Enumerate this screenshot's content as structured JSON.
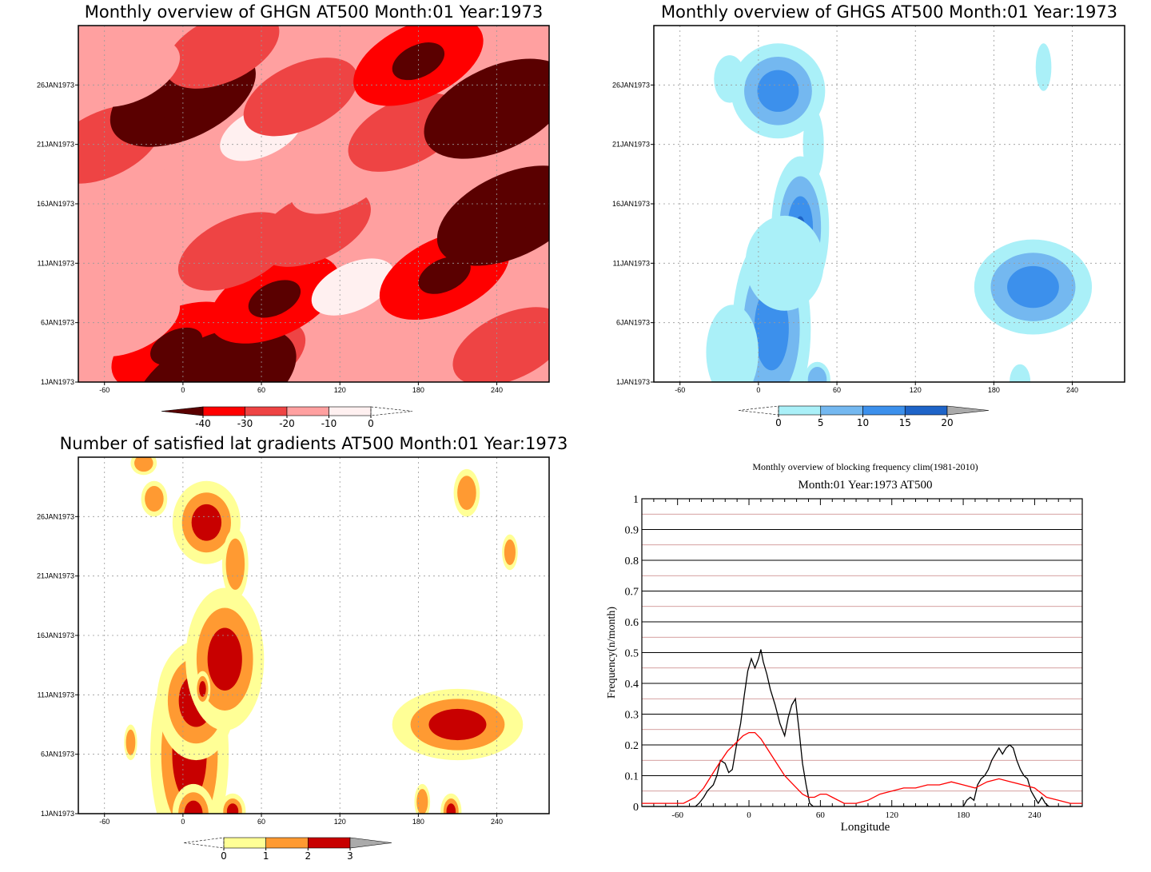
{
  "chart_data": [
    {
      "id": "ghgn",
      "type": "heatmap",
      "title": "Monthly overview of GHGN AT500 Month:01 Year:1973",
      "xlim": [
        -80,
        280
      ],
      "x_ticks": [
        -60,
        0,
        60,
        120,
        180,
        240
      ],
      "y_ticks": [
        "1JAN1973",
        "6JAN1973",
        "11JAN1973",
        "16JAN1973",
        "21JAN1973",
        "26JAN1973"
      ],
      "colorbar": {
        "labels": [
          "-40",
          "-30",
          "-20",
          "-10",
          "0"
        ],
        "colors": [
          "#5a0000",
          "#ff0000",
          "#ee4444",
          "#ffa0a0",
          "#fff0f0"
        ]
      },
      "blobs": [
        {
          "lon": 5,
          "day": 2,
          "level": 3
        },
        {
          "lon": -5,
          "day": 4,
          "level": 2
        },
        {
          "lon": 50,
          "day": 3,
          "level": 1
        },
        {
          "lon": 25,
          "day": 1,
          "level": 4
        },
        {
          "lon": -40,
          "day": 6,
          "level": 0
        },
        {
          "lon": 70,
          "day": 8,
          "level": 2
        },
        {
          "lon": 130,
          "day": 9,
          "level": -1
        },
        {
          "lon": 150,
          "day": 5,
          "level": 0
        },
        {
          "lon": 250,
          "day": 4,
          "level": 1
        },
        {
          "lon": 200,
          "day": 10,
          "level": 2
        },
        {
          "lon": 40,
          "day": 12,
          "level": 1
        },
        {
          "lon": 100,
          "day": 14,
          "level": 1
        },
        {
          "lon": 250,
          "day": 15,
          "level": 3
        },
        {
          "lon": 0,
          "day": 17,
          "level": 0
        },
        {
          "lon": 120,
          "day": 18,
          "level": 0
        },
        {
          "lon": -60,
          "day": 21,
          "level": 1
        },
        {
          "lon": 60,
          "day": 22,
          "level": -1
        },
        {
          "lon": 170,
          "day": 22,
          "level": 1
        },
        {
          "lon": 240,
          "day": 24,
          "level": 3
        },
        {
          "lon": 0,
          "day": 25,
          "level": 3
        },
        {
          "lon": 90,
          "day": 25,
          "level": 1
        },
        {
          "lon": 180,
          "day": 28,
          "level": 2
        },
        {
          "lon": 30,
          "day": 29,
          "level": 1
        },
        {
          "lon": -40,
          "day": 27,
          "level": 0
        }
      ]
    },
    {
      "id": "ghgs",
      "type": "heatmap",
      "title": "Monthly overview of GHGS AT500 Month:01 Year:1973",
      "xlim": [
        -80,
        280
      ],
      "x_ticks": [
        -60,
        0,
        60,
        120,
        180,
        240
      ],
      "y_ticks": [
        "1JAN1973",
        "6JAN1973",
        "11JAN1973",
        "16JAN1973",
        "21JAN1973",
        "26JAN1973"
      ],
      "colorbar": {
        "labels": [
          "0",
          "5",
          "10",
          "15",
          "20"
        ],
        "colors": [
          "#aaf0f8",
          "#74b8f0",
          "#3c90ec",
          "#1e64c8"
        ]
      },
      "blobs": [
        {
          "lon": 10,
          "day": 5.5,
          "w": 30,
          "h": 8,
          "level": 2
        },
        {
          "lon": -20,
          "day": 3.5,
          "w": 20,
          "h": 4,
          "level": 0
        },
        {
          "lon": 32,
          "day": 14,
          "w": 22,
          "h": 6,
          "level": 3
        },
        {
          "lon": 20,
          "day": 11,
          "w": 30,
          "h": 4,
          "level": 0
        },
        {
          "lon": 15,
          "day": 25.5,
          "w": 36,
          "h": 4,
          "level": 2
        },
        {
          "lon": 42,
          "day": 21,
          "w": 8,
          "h": 3,
          "level": 0
        },
        {
          "lon": -22,
          "day": 26.5,
          "w": 12,
          "h": 2,
          "level": 0
        },
        {
          "lon": 210,
          "day": 9,
          "w": 45,
          "h": 4,
          "level": 2
        },
        {
          "lon": 218,
          "day": 27.5,
          "w": 6,
          "h": 2,
          "level": 0
        },
        {
          "lon": 200,
          "day": 1,
          "w": 8,
          "h": 1.5,
          "level": 0
        },
        {
          "lon": 45,
          "day": 1.2,
          "w": 10,
          "h": 1.5,
          "level": 1
        }
      ]
    },
    {
      "id": "lat_gradients",
      "type": "heatmap",
      "title": "Number of satisfied lat gradients AT500 Month:01 Year:1973",
      "xlim": [
        -80,
        280
      ],
      "x_ticks": [
        -60,
        0,
        60,
        120,
        180,
        240
      ],
      "y_ticks": [
        "1JAN1973",
        "6JAN1973",
        "11JAN1973",
        "16JAN1973",
        "21JAN1973",
        "26JAN1973"
      ],
      "colorbar": {
        "labels": [
          "0",
          "1",
          "2",
          "3"
        ],
        "colors": [
          "#ffff96",
          "#ff9a32",
          "#c80000"
        ]
      },
      "blobs": [
        {
          "lon": 5,
          "day": 6,
          "w": 30,
          "h": 9,
          "level": 3
        },
        {
          "lon": 10,
          "day": 10.5,
          "w": 30,
          "h": 5,
          "level": 2
        },
        {
          "lon": 32,
          "day": 14,
          "w": 30,
          "h": 6,
          "level": 2
        },
        {
          "lon": 15,
          "day": 11.5,
          "w": 6,
          "h": 1.5,
          "level": 3
        },
        {
          "lon": 18,
          "day": 25.5,
          "w": 26,
          "h": 3.5,
          "level": 3
        },
        {
          "lon": 8,
          "day": 1,
          "w": 16,
          "h": 2.5,
          "level": 3
        },
        {
          "lon": 38,
          "day": 1.2,
          "w": 10,
          "h": 1.5,
          "level": 2
        },
        {
          "lon": 210,
          "day": 8.5,
          "w": 50,
          "h": 3,
          "level": 2
        },
        {
          "lon": 205,
          "day": 1.2,
          "w": 8,
          "h": 1.5,
          "level": 2
        },
        {
          "lon": -40,
          "day": 7,
          "w": 5,
          "h": 1.5,
          "level": 1
        },
        {
          "lon": -22,
          "day": 27.5,
          "w": 10,
          "h": 1.5,
          "level": 1
        },
        {
          "lon": 40,
          "day": 22,
          "w": 10,
          "h": 3,
          "level": 1
        },
        {
          "lon": 217,
          "day": 28,
          "w": 10,
          "h": 2,
          "level": 1
        },
        {
          "lon": 250,
          "day": 23,
          "w": 6,
          "h": 1.5,
          "level": 1
        },
        {
          "lon": 183,
          "day": 2,
          "w": 6,
          "h": 1.5,
          "level": 1
        },
        {
          "lon": -30,
          "day": 30.5,
          "w": 10,
          "h": 1,
          "level": 1
        }
      ]
    },
    {
      "id": "blocking_frequency",
      "type": "line",
      "title": "Monthly overview of blocking frequency clim(1981-2010)",
      "subtitle": "Month:01 Year:1973  AT500",
      "xlabel": "Longitude",
      "ylabel": "Frequency(n/month)",
      "xlim": [
        -90,
        280
      ],
      "ylim": [
        0,
        1
      ],
      "x_ticks": [
        -60,
        0,
        60,
        120,
        180,
        240
      ],
      "y_ticks": [
        0,
        0.1,
        0.2,
        0.3,
        0.4,
        0.5,
        0.6,
        0.7,
        0.8,
        0.9,
        1
      ],
      "grid": true,
      "series": [
        {
          "color": "#000000",
          "x": [
            -90,
            -45,
            -42,
            -38,
            -35,
            -30,
            -27,
            -24,
            -20,
            -17,
            -14,
            -10,
            -7,
            -4,
            -1,
            2,
            5,
            8,
            10,
            12,
            15,
            18,
            22,
            26,
            30,
            33,
            36,
            39,
            42,
            45,
            48,
            51,
            54,
            60,
            180,
            183,
            186,
            189,
            192,
            195,
            198,
            201,
            204,
            207,
            210,
            213,
            216,
            219,
            222,
            225,
            228,
            231,
            234,
            237,
            240,
            243,
            246,
            249,
            252,
            255,
            280
          ],
          "y": [
            0,
            0,
            0.01,
            0.03,
            0.05,
            0.07,
            0.1,
            0.15,
            0.14,
            0.11,
            0.12,
            0.21,
            0.27,
            0.36,
            0.44,
            0.48,
            0.45,
            0.48,
            0.51,
            0.47,
            0.43,
            0.38,
            0.33,
            0.27,
            0.23,
            0.29,
            0.33,
            0.35,
            0.25,
            0.14,
            0.07,
            0.01,
            0,
            0,
            0,
            0.02,
            0.03,
            0.02,
            0.07,
            0.09,
            0.1,
            0.12,
            0.15,
            0.17,
            0.19,
            0.17,
            0.19,
            0.2,
            0.19,
            0.15,
            0.12,
            0.1,
            0.09,
            0.05,
            0.03,
            0.01,
            0.03,
            0.01,
            0,
            0,
            0
          ]
        },
        {
          "color": "#ff0000",
          "x": [
            -90,
            -70,
            -55,
            -45,
            -38,
            -30,
            -25,
            -18,
            -10,
            -5,
            0,
            5,
            10,
            15,
            20,
            25,
            30,
            35,
            40,
            45,
            50,
            55,
            60,
            65,
            70,
            80,
            90,
            100,
            110,
            120,
            130,
            140,
            150,
            160,
            170,
            180,
            190,
            200,
            210,
            220,
            230,
            240,
            250,
            260,
            270,
            280
          ],
          "y": [
            0.01,
            0.01,
            0.01,
            0.03,
            0.06,
            0.11,
            0.14,
            0.18,
            0.21,
            0.23,
            0.24,
            0.24,
            0.22,
            0.19,
            0.16,
            0.13,
            0.1,
            0.08,
            0.06,
            0.04,
            0.03,
            0.03,
            0.04,
            0.04,
            0.03,
            0.01,
            0.01,
            0.02,
            0.04,
            0.05,
            0.06,
            0.06,
            0.07,
            0.07,
            0.08,
            0.07,
            0.06,
            0.08,
            0.09,
            0.08,
            0.07,
            0.06,
            0.03,
            0.02,
            0.01,
            0.01
          ]
        }
      ]
    }
  ]
}
